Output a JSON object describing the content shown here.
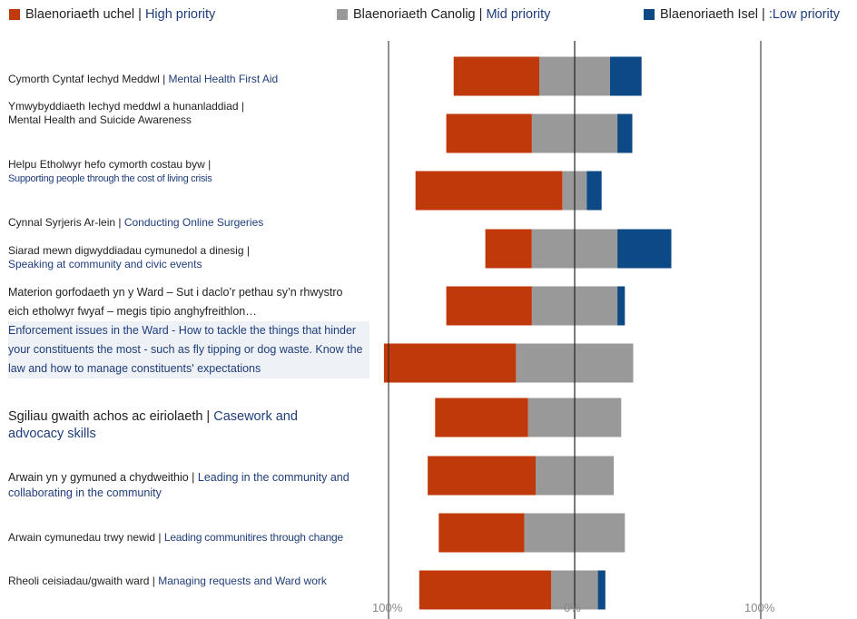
{
  "legend": [
    {
      "cy": "Blaenoriaeth uchel",
      "sep": " | ",
      "en": "High priority",
      "color": "#c0390b"
    },
    {
      "cy": "Blaenoriaeth Canolig",
      "sep": " | ",
      "en": "Mid priority",
      "color": "#999999"
    },
    {
      "cy": "Blaenoriaeth Isel",
      "sep": " | ",
      "en": ":Low priority",
      "color": "#0d4a85"
    }
  ],
  "rows": [
    {
      "cy": "Cymorth Cyntaf Iechyd Meddwl | ",
      "en": "Mental Health First Aid"
    },
    {
      "cy": "Ymwybyddiaeth Iechyd meddwl a hunanladdiad |",
      "en": "Mental Health and Suicide Awareness"
    },
    {
      "cy": "Helpu Etholwyr hefo cymorth costau byw |",
      "en": "Supporting people through the cost of living crisis"
    },
    {
      "cy": "Cynnal Syrjeris Ar-lein | ",
      "en": "Conducting Online Surgeries"
    },
    {
      "cy": "Siarad mewn digwyddiadau cymunedol a dinesig |",
      "en": "Speaking at community and civic events"
    },
    {
      "cy": "Materion gorfodaeth yn y Ward – Sut i daclo’r pethau sy’n rhwystro eich etholwyr fwyaf – megis tipio anghyfreithlon…",
      "en": "Enforcement issues in the Ward - How to tackle the things that hinder your constituents the most - such as fly tipping or dog waste. Know the law and how to manage constituents' expectations"
    },
    {
      "cy": "Sgiliau gwaith achos ac eiriolaeth | ",
      "en": "Casework and advocacy skills"
    },
    {
      "cy": "Arwain yn y gymuned a chydweithio | ",
      "en": "Leading in the community and collaborating in the community"
    },
    {
      "cy": "Arwain cymunedau trwy newid | ",
      "en": "Leading communitires through change"
    },
    {
      "cy": "Rheoli ceisiadau/gwaith ward | ",
      "en": "Managing requests and Ward work"
    }
  ],
  "chart_data": {
    "type": "bar",
    "orientation": "horizontal-diverging",
    "axis": {
      "left_label": "100%",
      "center_label": "0%",
      "right_label": "100%",
      "xlim": [
        -100,
        100
      ]
    },
    "categories": [
      "Mental Health First Aid",
      "Mental Health and Suicide Awareness",
      "Supporting people through the cost of living crisis",
      "Conducting Online Surgeries",
      "Speaking at community and civic events",
      "Enforcement issues in the Ward",
      "Casework and advocacy skills",
      "Leading in the community and collaborating in the community",
      "Leading communitires through change",
      "Managing requests and Ward work"
    ],
    "series": [
      {
        "name": "Blaenoriaeth uchel | High priority",
        "color": "#c0390b",
        "values": [
          46,
          46,
          79,
          25,
          46,
          71,
          50,
          58,
          46,
          71
        ]
      },
      {
        "name": "Blaenoriaeth Canolig | Mid priority",
        "color": "#999999",
        "values": [
          38,
          46,
          13,
          46,
          46,
          63,
          50,
          42,
          54,
          25
        ]
      },
      {
        "name": "Blaenoriaeth Isel | :Low priority",
        "color": "#0d4a85",
        "values": [
          17,
          8,
          8,
          29,
          4,
          0,
          0,
          0,
          0,
          4
        ]
      }
    ],
    "notes": "Diverging stacked bars; mid-priority segment centered on the 0% line, high priority extends left, low priority extends right."
  }
}
